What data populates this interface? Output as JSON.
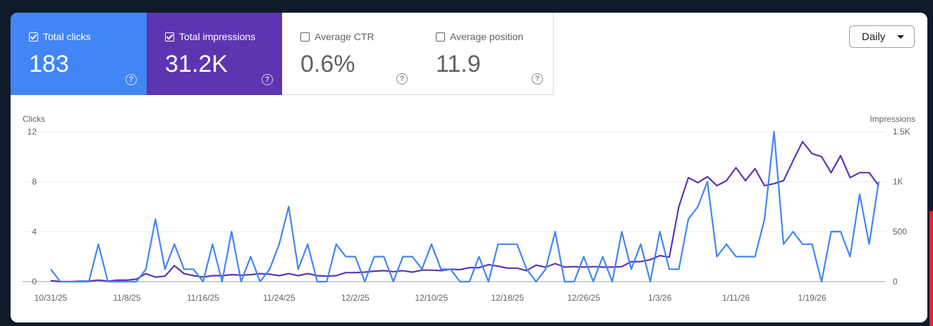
{
  "metrics": [
    {
      "label": "Total clicks",
      "value": "183",
      "checked": true
    },
    {
      "label": "Total impressions",
      "value": "31.2K",
      "checked": true
    },
    {
      "label": "Average CTR",
      "value": "0.6%",
      "checked": false
    },
    {
      "label": "Average position",
      "value": "11.9",
      "checked": false
    }
  ],
  "help_glyph": "?",
  "granularity": {
    "selected": "Daily"
  },
  "colors": {
    "clicks": "#4285f4",
    "impressions": "#5e35b1",
    "ctr": "#ffffff",
    "position": "#ffffff"
  },
  "chart_data": {
    "type": "line",
    "left_axis_title": "Clicks",
    "right_axis_title": "Impressions",
    "left_ylim": [
      0,
      12
    ],
    "right_ylim": [
      0,
      1500
    ],
    "left_ticks": [
      "0",
      "4",
      "8",
      "12"
    ],
    "right_ticks": [
      "0",
      "500",
      "1K",
      "1.5K"
    ],
    "x_tick_labels": [
      "10/31/25",
      "11/8/25",
      "11/16/25",
      "11/24/25",
      "12/2/25",
      "12/10/25",
      "12/18/25",
      "12/26/25",
      "1/3/26",
      "1/11/26",
      "1/19/26"
    ],
    "grid": true,
    "x": [
      "10/31/25",
      "11/1/25",
      "11/2/25",
      "11/3/25",
      "11/4/25",
      "11/5/25",
      "11/6/25",
      "11/7/25",
      "11/8/25",
      "11/9/25",
      "11/10/25",
      "11/11/25",
      "11/12/25",
      "11/13/25",
      "11/14/25",
      "11/15/25",
      "11/16/25",
      "11/17/25",
      "11/18/25",
      "11/19/25",
      "11/20/25",
      "11/21/25",
      "11/22/25",
      "11/23/25",
      "11/24/25",
      "11/25/25",
      "11/26/25",
      "11/27/25",
      "11/28/25",
      "11/29/25",
      "11/30/25",
      "12/1/25",
      "12/2/25",
      "12/3/25",
      "12/4/25",
      "12/5/25",
      "12/6/25",
      "12/7/25",
      "12/8/25",
      "12/9/25",
      "12/10/25",
      "12/11/25",
      "12/12/25",
      "12/13/25",
      "12/14/25",
      "12/15/25",
      "12/16/25",
      "12/17/25",
      "12/18/25",
      "12/19/25",
      "12/20/25",
      "12/21/25",
      "12/22/25",
      "12/23/25",
      "12/24/25",
      "12/25/25",
      "12/26/25",
      "12/27/25",
      "12/28/25",
      "12/29/25",
      "12/30/25",
      "12/31/25",
      "1/1/26",
      "1/2/26",
      "1/3/26",
      "1/4/26",
      "1/5/26",
      "1/6/26",
      "1/7/26",
      "1/8/26",
      "1/9/26",
      "1/10/26",
      "1/11/26",
      "1/12/26",
      "1/13/26",
      "1/14/26",
      "1/15/26",
      "1/16/26",
      "1/17/26",
      "1/18/26",
      "1/19/26",
      "1/20/26",
      "1/21/26",
      "1/22/26",
      "1/23/26",
      "1/24/26",
      "1/25/26",
      "1/26/26"
    ],
    "series": [
      {
        "name": "Clicks",
        "axis": "left",
        "color": "#4285f4",
        "values": [
          1,
          0,
          0,
          0,
          0,
          3,
          0,
          0,
          0,
          0,
          1,
          5,
          1,
          3,
          1,
          1,
          0,
          3,
          0,
          4,
          0,
          2,
          0,
          1,
          3,
          6,
          1,
          3,
          0,
          0,
          3,
          2,
          2,
          0,
          2,
          2,
          0,
          2,
          2,
          1,
          3,
          1,
          1,
          0,
          0,
          2,
          0,
          3,
          3,
          3,
          1,
          0,
          1,
          4,
          0,
          0,
          2,
          0,
          2,
          0,
          4,
          1,
          3,
          0,
          4,
          1,
          1,
          5,
          6,
          8,
          2,
          3,
          2,
          2,
          2,
          5,
          12,
          3,
          4,
          3,
          3,
          0,
          4,
          4,
          2,
          7,
          3,
          8
        ]
      },
      {
        "name": "Impressions",
        "axis": "right",
        "color": "#5e35b1",
        "values": [
          10,
          0,
          0,
          5,
          5,
          15,
          5,
          15,
          15,
          25,
          80,
          45,
          55,
          160,
          80,
          60,
          45,
          60,
          60,
          70,
          65,
          70,
          80,
          75,
          60,
          80,
          60,
          80,
          60,
          55,
          60,
          90,
          90,
          95,
          105,
          110,
          100,
          110,
          95,
          115,
          115,
          110,
          125,
          120,
          140,
          140,
          170,
          155,
          135,
          135,
          110,
          165,
          145,
          180,
          145,
          150,
          145,
          150,
          145,
          145,
          150,
          200,
          200,
          220,
          260,
          245,
          750,
          1040,
          990,
          1050,
          960,
          1010,
          1140,
          1010,
          1130,
          960,
          980,
          1010,
          1210,
          1400,
          1280,
          1250,
          1090,
          1260,
          1040,
          1090,
          1090,
          960
        ]
      }
    ]
  }
}
